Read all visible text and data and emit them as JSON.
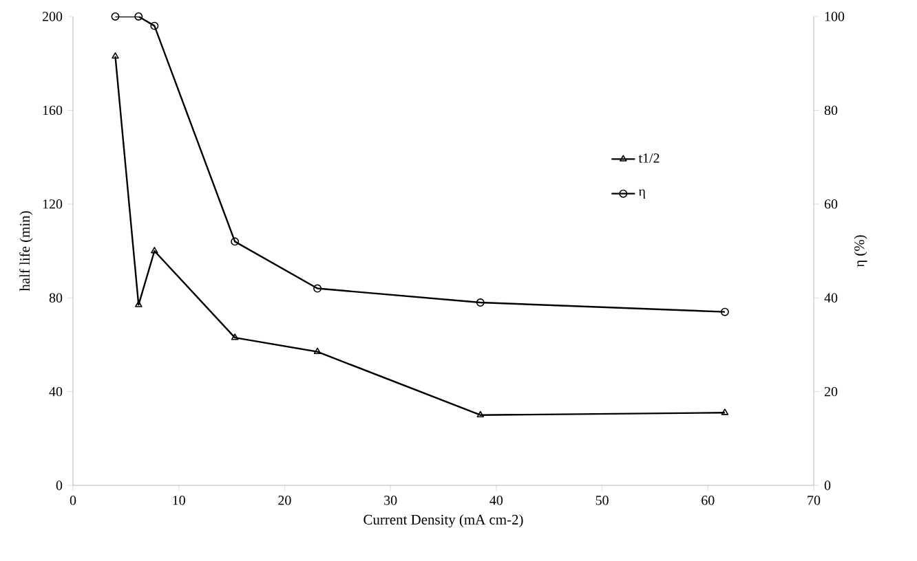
{
  "chart_data": {
    "type": "line",
    "xlabel": "Current Density (mA cm-2)",
    "ylabel": "half life (min)",
    "y2label": "η (%)",
    "xlim": [
      0,
      70
    ],
    "xticks": [
      0,
      10,
      20,
      30,
      40,
      50,
      60,
      70
    ],
    "ylim": [
      0,
      200
    ],
    "yticks": [
      0,
      40,
      80,
      120,
      160,
      200
    ],
    "y2lim": [
      0,
      100
    ],
    "y2ticks": [
      0,
      20,
      40,
      60,
      80,
      100
    ],
    "grid": false,
    "legend": "right",
    "series": [
      {
        "name": "t1/2",
        "color": "#000000",
        "marker": "triangle",
        "x": [
          4.0,
          6.2,
          7.7,
          15.3,
          23.1,
          38.5,
          61.6
        ],
        "values": [
          183,
          77,
          100,
          63,
          57,
          30,
          31
        ]
      },
      {
        "name": "η",
        "color": "#000000",
        "marker": "circle",
        "axis": "y2",
        "x": [
          4.0,
          6.2,
          7.7,
          15.3,
          23.1,
          38.5,
          61.6
        ],
        "values": [
          100,
          100,
          98,
          52,
          42,
          39,
          37
        ]
      }
    ]
  }
}
